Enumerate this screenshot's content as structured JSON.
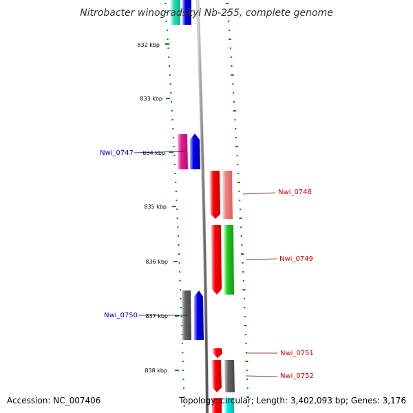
{
  "title": "Nitrobacter winogradskyi Nb-255, complete genome",
  "accession": "Accession: NC_007406",
  "topology": "Topology: circular; Length: 3,402,093 bp; Genes: 3,176",
  "ticks": [
    {
      "label": "832 kbp"
    },
    {
      "label": "833 kbp"
    },
    {
      "label": "834 kbp"
    },
    {
      "label": "835 kbp"
    },
    {
      "label": "836 kbp"
    },
    {
      "label": "837 kbp"
    },
    {
      "label": "838 kbp"
    }
  ],
  "genes": {
    "left": [
      {
        "label": "Nwi_0747"
      },
      {
        "label": "Nwi_0750"
      }
    ],
    "right": [
      {
        "label": "Nwi_0748"
      },
      {
        "label": "Nwi_0749"
      },
      {
        "label": "Nwi_0751"
      },
      {
        "label": "Nwi_0752"
      }
    ]
  },
  "colors": {
    "left_label": "#0000cc",
    "right_label": "#cc0000",
    "dots": "#008000",
    "backbone": "#888888"
  }
}
